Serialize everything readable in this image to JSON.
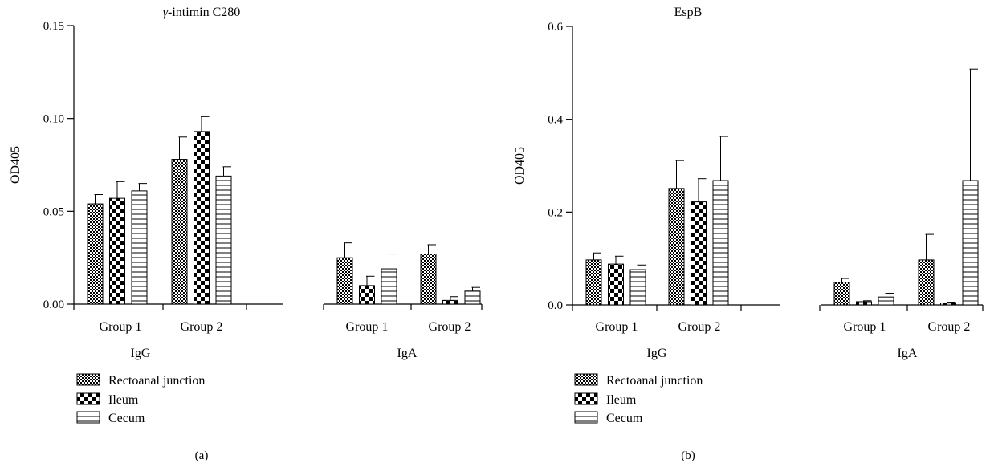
{
  "chart_data": [
    {
      "type": "bar",
      "panel_label": "(a)",
      "title_prefix": "γ",
      "title_suffix": "-intimin C280",
      "ylabel": "OD405",
      "ylim": [
        0,
        0.15
      ],
      "yticks": [
        "0.00",
        "0.05",
        "0.10",
        "0.15"
      ],
      "ytick_values": [
        0,
        0.05,
        0.1,
        0.15
      ],
      "groups": [
        {
          "name": "IgG",
          "categories": [
            "Group 1",
            "Group 2"
          ]
        },
        {
          "name": "IgA",
          "categories": [
            "Group 1",
            "Group 2"
          ]
        }
      ],
      "series": [
        {
          "name": "Rectoanal junction",
          "values": [
            0.054,
            0.078,
            0.025,
            0.027
          ],
          "errors": [
            0.005,
            0.012,
            0.008,
            0.005
          ]
        },
        {
          "name": "Ileum",
          "values": [
            0.057,
            0.093,
            0.01,
            0.002
          ],
          "errors": [
            0.009,
            0.008,
            0.005,
            0.002
          ]
        },
        {
          "name": "Cecum",
          "values": [
            0.061,
            0.069,
            0.019,
            0.007
          ],
          "errors": [
            0.004,
            0.005,
            0.008,
            0.002
          ]
        }
      ],
      "legend_position": "bottom-left"
    },
    {
      "type": "bar",
      "panel_label": "(b)",
      "title": "EspB",
      "ylabel": "OD405",
      "ylim": [
        0,
        0.6
      ],
      "yticks": [
        "0.0",
        "0.2",
        "0.4",
        "0.6"
      ],
      "ytick_values": [
        0,
        0.2,
        0.4,
        0.6
      ],
      "groups": [
        {
          "name": "IgG",
          "categories": [
            "Group 1",
            "Group 2"
          ]
        },
        {
          "name": "IgA",
          "categories": [
            "Group 1",
            "Group 2"
          ]
        }
      ],
      "series": [
        {
          "name": "Rectoanal junction",
          "values": [
            0.097,
            0.251,
            0.049,
            0.097
          ],
          "errors": [
            0.015,
            0.06,
            0.008,
            0.055
          ]
        },
        {
          "name": "Ileum",
          "values": [
            0.088,
            0.222,
            0.007,
            0.004
          ],
          "errors": [
            0.017,
            0.05,
            0.002,
            0.002
          ]
        },
        {
          "name": "Cecum",
          "values": [
            0.076,
            0.268,
            0.017,
            0.268
          ],
          "errors": [
            0.01,
            0.095,
            0.008,
            0.24
          ]
        }
      ],
      "legend_position": "bottom-left"
    }
  ]
}
